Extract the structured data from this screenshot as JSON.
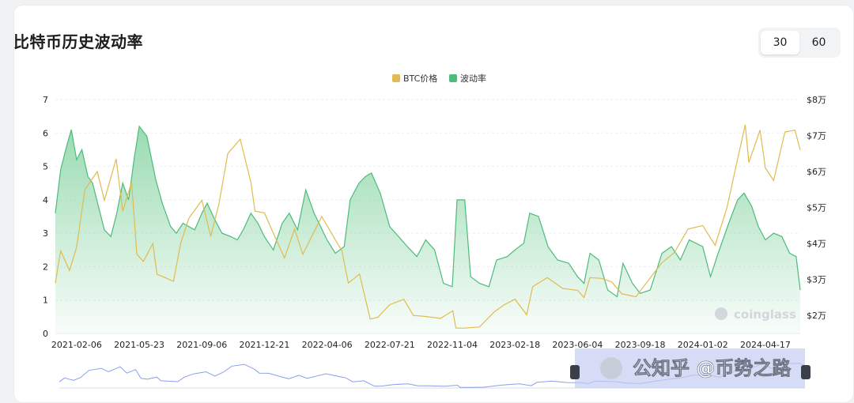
{
  "title": "比特币历史波动率",
  "period_buttons": [
    {
      "label": "30",
      "active": true
    },
    {
      "label": "60",
      "active": false
    }
  ],
  "watermark": "coinglass",
  "overlay_text": "公知乎 @币势之路",
  "colors": {
    "price": "#e0bb4f",
    "volatility": "#4dbb7a",
    "volatility_fill_top": "#78cf97",
    "navigator_fill": "#c5cdf1"
  },
  "chart_data": {
    "type": "line",
    "legend": [
      "BTC价格",
      "波动率"
    ],
    "x_tick_labels": [
      "2021-02-06",
      "2021-05-23",
      "2021-09-06",
      "2021-12-21",
      "2022-04-06",
      "2022-07-21",
      "2022-11-04",
      "2023-02-18",
      "2023-06-04",
      "2023-09-18",
      "2024-01-02",
      "2024-04-17"
    ],
    "x_range": [
      "2021-01-01",
      "2024-06-15"
    ],
    "y_left": {
      "ticks": [
        "0",
        "1",
        "2",
        "3",
        "4",
        "5",
        "6",
        "7"
      ],
      "min": 0,
      "max": 7
    },
    "y_right": {
      "ticks": [
        "$2万",
        "$3万",
        "$4万",
        "$5万",
        "$6万",
        "$7万",
        "$8万"
      ],
      "min": 15000,
      "max": 80000
    },
    "grid": "horizontal",
    "legend_position": "top-center",
    "series": [
      {
        "name": "BTC价格",
        "axis": "right",
        "type": "line",
        "points": [
          [
            "2021-01-01",
            29000
          ],
          [
            "2021-01-10",
            38000
          ],
          [
            "2021-01-25",
            32500
          ],
          [
            "2021-02-06",
            39000
          ],
          [
            "2021-02-20",
            55000
          ],
          [
            "2021-03-13",
            60000
          ],
          [
            "2021-03-25",
            52000
          ],
          [
            "2021-04-14",
            63500
          ],
          [
            "2021-04-25",
            49000
          ],
          [
            "2021-05-10",
            57000
          ],
          [
            "2021-05-19",
            37000
          ],
          [
            "2021-05-30",
            35000
          ],
          [
            "2021-06-15",
            40000
          ],
          [
            "2021-06-22",
            31500
          ],
          [
            "2021-07-20",
            29500
          ],
          [
            "2021-08-01",
            40000
          ],
          [
            "2021-08-15",
            47000
          ],
          [
            "2021-09-06",
            52000
          ],
          [
            "2021-09-21",
            42000
          ],
          [
            "2021-10-05",
            51000
          ],
          [
            "2021-10-20",
            65000
          ],
          [
            "2021-11-10",
            69000
          ],
          [
            "2021-11-28",
            57000
          ],
          [
            "2021-12-05",
            49000
          ],
          [
            "2021-12-21",
            48500
          ],
          [
            "2022-01-10",
            41000
          ],
          [
            "2022-01-24",
            36000
          ],
          [
            "2022-02-10",
            44000
          ],
          [
            "2022-02-24",
            37000
          ],
          [
            "2022-03-28",
            47500
          ],
          [
            "2022-04-20",
            41000
          ],
          [
            "2022-05-01",
            38000
          ],
          [
            "2022-05-12",
            29000
          ],
          [
            "2022-05-31",
            31500
          ],
          [
            "2022-06-13",
            22500
          ],
          [
            "2022-06-18",
            19000
          ],
          [
            "2022-07-01",
            19500
          ],
          [
            "2022-07-21",
            23000
          ],
          [
            "2022-08-14",
            24500
          ],
          [
            "2022-08-30",
            20000
          ],
          [
            "2022-09-15",
            19800
          ],
          [
            "2022-10-15",
            19200
          ],
          [
            "2022-11-05",
            21300
          ],
          [
            "2022-11-10",
            16500
          ],
          [
            "2022-11-25",
            16500
          ],
          [
            "2022-12-20",
            16800
          ],
          [
            "2023-01-14",
            21000
          ],
          [
            "2023-01-31",
            23000
          ],
          [
            "2023-02-18",
            24500
          ],
          [
            "2023-03-10",
            20200
          ],
          [
            "2023-03-20",
            28000
          ],
          [
            "2023-04-14",
            30500
          ],
          [
            "2023-05-10",
            27500
          ],
          [
            "2023-06-04",
            27000
          ],
          [
            "2023-06-15",
            25000
          ],
          [
            "2023-06-25",
            30500
          ],
          [
            "2023-07-15",
            30300
          ],
          [
            "2023-08-01",
            29300
          ],
          [
            "2023-08-18",
            26000
          ],
          [
            "2023-09-11",
            25200
          ],
          [
            "2023-09-18",
            26800
          ],
          [
            "2023-10-24",
            34500
          ],
          [
            "2023-11-15",
            37500
          ],
          [
            "2023-12-08",
            44000
          ],
          [
            "2024-01-02",
            45000
          ],
          [
            "2024-01-23",
            39500
          ],
          [
            "2024-02-12",
            50000
          ],
          [
            "2024-02-28",
            62000
          ],
          [
            "2024-03-14",
            73000
          ],
          [
            "2024-03-20",
            62500
          ],
          [
            "2024-04-08",
            71500
          ],
          [
            "2024-04-17",
            61000
          ],
          [
            "2024-05-01",
            57500
          ],
          [
            "2024-05-20",
            71000
          ],
          [
            "2024-06-06",
            71500
          ],
          [
            "2024-06-15",
            66000
          ]
        ]
      },
      {
        "name": "波动率",
        "axis": "left",
        "type": "area",
        "points": [
          [
            "2021-01-01",
            3.6
          ],
          [
            "2021-01-10",
            4.9
          ],
          [
            "2021-01-20",
            5.6
          ],
          [
            "2021-01-28",
            6.1
          ],
          [
            "2021-02-06",
            5.2
          ],
          [
            "2021-02-15",
            5.5
          ],
          [
            "2021-02-25",
            4.7
          ],
          [
            "2021-03-05",
            4.5
          ],
          [
            "2021-03-15",
            3.8
          ],
          [
            "2021-03-25",
            3.1
          ],
          [
            "2021-04-05",
            2.9
          ],
          [
            "2021-04-15",
            3.6
          ],
          [
            "2021-04-25",
            4.5
          ],
          [
            "2021-05-05",
            4.0
          ],
          [
            "2021-05-15",
            5.3
          ],
          [
            "2021-05-23",
            6.2
          ],
          [
            "2021-06-05",
            5.9
          ],
          [
            "2021-06-20",
            4.6
          ],
          [
            "2021-07-01",
            3.9
          ],
          [
            "2021-07-15",
            3.2
          ],
          [
            "2021-07-25",
            3.0
          ],
          [
            "2021-08-05",
            3.3
          ],
          [
            "2021-08-15",
            3.2
          ],
          [
            "2021-08-25",
            3.1
          ],
          [
            "2021-09-06",
            3.6
          ],
          [
            "2021-09-15",
            3.9
          ],
          [
            "2021-09-28",
            3.4
          ],
          [
            "2021-10-10",
            3.0
          ],
          [
            "2021-10-25",
            2.9
          ],
          [
            "2021-11-05",
            2.8
          ],
          [
            "2021-11-15",
            3.1
          ],
          [
            "2021-11-28",
            3.6
          ],
          [
            "2021-12-10",
            3.3
          ],
          [
            "2021-12-21",
            2.9
          ],
          [
            "2022-01-05",
            2.5
          ],
          [
            "2022-01-20",
            3.3
          ],
          [
            "2022-02-01",
            3.6
          ],
          [
            "2022-02-15",
            3.1
          ],
          [
            "2022-03-01",
            4.3
          ],
          [
            "2022-03-15",
            3.6
          ],
          [
            "2022-04-06",
            2.8
          ],
          [
            "2022-04-20",
            2.4
          ],
          [
            "2022-05-05",
            2.6
          ],
          [
            "2022-05-15",
            4.0
          ],
          [
            "2022-05-30",
            4.5
          ],
          [
            "2022-06-10",
            4.7
          ],
          [
            "2022-06-20",
            4.8
          ],
          [
            "2022-07-05",
            4.2
          ],
          [
            "2022-07-21",
            3.2
          ],
          [
            "2022-08-05",
            2.9
          ],
          [
            "2022-08-20",
            2.6
          ],
          [
            "2022-09-05",
            2.3
          ],
          [
            "2022-09-20",
            2.8
          ],
          [
            "2022-10-05",
            2.5
          ],
          [
            "2022-10-20",
            1.5
          ],
          [
            "2022-11-04",
            1.4
          ],
          [
            "2022-11-12",
            4.0
          ],
          [
            "2022-11-25",
            4.0
          ],
          [
            "2022-12-05",
            1.7
          ],
          [
            "2022-12-20",
            1.5
          ],
          [
            "2023-01-05",
            1.4
          ],
          [
            "2023-01-18",
            2.2
          ],
          [
            "2023-02-05",
            2.3
          ],
          [
            "2023-02-18",
            2.5
          ],
          [
            "2023-03-05",
            2.7
          ],
          [
            "2023-03-15",
            3.6
          ],
          [
            "2023-03-30",
            3.5
          ],
          [
            "2023-04-15",
            2.6
          ],
          [
            "2023-05-01",
            2.2
          ],
          [
            "2023-05-20",
            2.1
          ],
          [
            "2023-06-04",
            1.7
          ],
          [
            "2023-06-15",
            1.5
          ],
          [
            "2023-06-25",
            2.4
          ],
          [
            "2023-07-10",
            2.2
          ],
          [
            "2023-07-25",
            1.3
          ],
          [
            "2023-08-10",
            1.1
          ],
          [
            "2023-08-20",
            2.1
          ],
          [
            "2023-09-05",
            1.5
          ],
          [
            "2023-09-18",
            1.2
          ],
          [
            "2023-10-05",
            1.3
          ],
          [
            "2023-10-25",
            2.4
          ],
          [
            "2023-11-10",
            2.6
          ],
          [
            "2023-11-25",
            2.2
          ],
          [
            "2023-12-10",
            2.8
          ],
          [
            "2024-01-02",
            2.6
          ],
          [
            "2024-01-15",
            1.7
          ],
          [
            "2024-01-28",
            2.4
          ],
          [
            "2024-02-15",
            3.3
          ],
          [
            "2024-03-01",
            4.0
          ],
          [
            "2024-03-12",
            4.2
          ],
          [
            "2024-03-25",
            3.8
          ],
          [
            "2024-04-05",
            3.2
          ],
          [
            "2024-04-17",
            2.8
          ],
          [
            "2024-05-01",
            3.0
          ],
          [
            "2024-05-15",
            2.9
          ],
          [
            "2024-05-28",
            2.4
          ],
          [
            "2024-06-08",
            2.3
          ],
          [
            "2024-06-15",
            1.3
          ]
        ]
      }
    ]
  }
}
